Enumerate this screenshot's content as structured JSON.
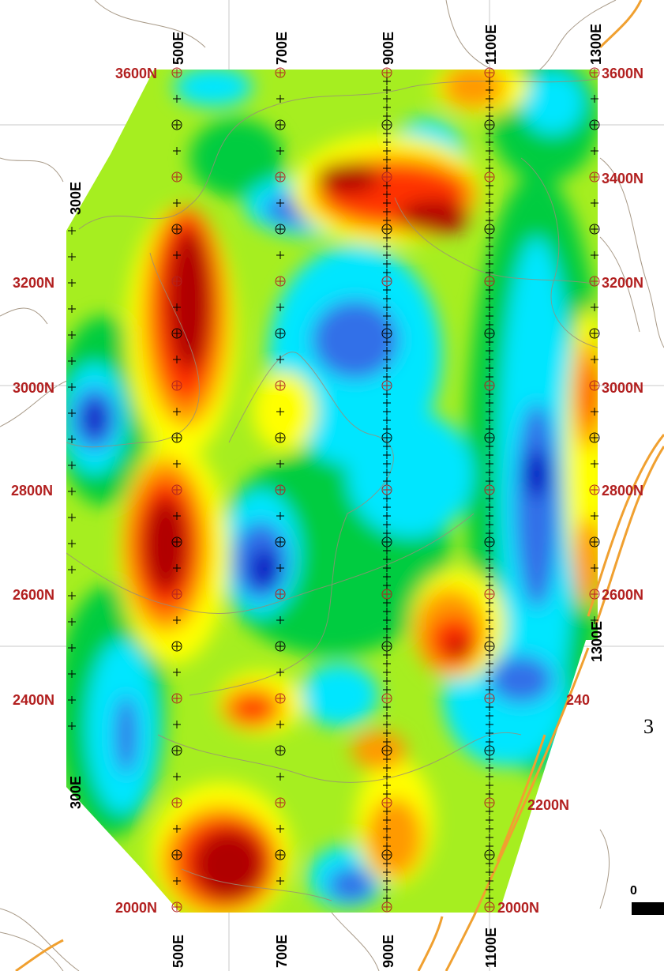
{
  "north_labels": [
    "3600N",
    "3400N",
    "3200N",
    "3000N",
    "2800N",
    "2600N",
    "2400N",
    "2200N",
    "2000N"
  ],
  "east_labels": [
    "300E",
    "500E",
    "700E",
    "900E",
    "1100E",
    "1300E"
  ],
  "side_labels": {
    "left_top": "300E",
    "left_bottom": "300E",
    "right_mid": "1300E",
    "right_partial": "240",
    "edge_fragment": "3",
    "scale_zero": "0"
  },
  "colors": {
    "grid_label": "#b22020",
    "line_label": "#000000",
    "road": "#f0a030",
    "contour": "#a09080",
    "ramp": [
      "#0000c0",
      "#3070e8",
      "#00e6ff",
      "#00c8a0",
      "#00cc40",
      "#a6ee20",
      "#ffff00",
      "#ff9a00",
      "#ff3000",
      "#b00000"
    ]
  }
}
